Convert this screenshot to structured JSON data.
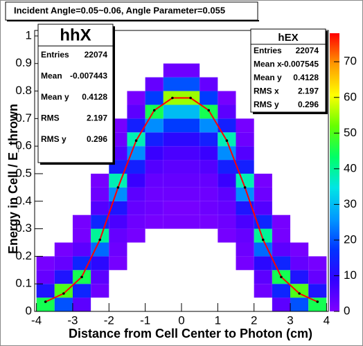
{
  "chart_data": {
    "type": "heatmap",
    "title": "Incident Angle=0.05~0.06, Angle Parameter=0.055",
    "x_label": "Distance from Cell Center to Photon (cm)",
    "y_label": "Energy in Cell / E_thrown",
    "xlim": [
      -4.05,
      4.05
    ],
    "ylim": [
      0,
      1.02
    ],
    "zlim": [
      0,
      78
    ],
    "xticks": [
      -4,
      -3,
      -2,
      -1,
      0,
      1,
      2,
      3,
      4
    ],
    "yticks": [
      0,
      0.1,
      0.2,
      0.3,
      0.4,
      0.5,
      0.6,
      0.7,
      0.8,
      0.9,
      1
    ],
    "zticks": [
      0,
      10,
      20,
      30,
      40,
      50,
      60,
      70
    ],
    "palette": [
      "#7f00ff",
      "#3300ff",
      "#0033ff",
      "#0099ff",
      "#00e5e5",
      "#00ff66",
      "#66ff00",
      "#ffff00",
      "#ff9900",
      "#ff0000"
    ],
    "x_bins": [
      -4,
      -3.5,
      -3,
      -2.5,
      -2,
      -1.5,
      -1,
      -0.5,
      0,
      0.5,
      1,
      1.5,
      2,
      2.5,
      3,
      3.5,
      4
    ],
    "y_bins": [
      0,
      0.05,
      0.1,
      0.15,
      0.2,
      0.25,
      0.3,
      0.35,
      0.4,
      0.45,
      0.5,
      0.55,
      0.6,
      0.65,
      0.7,
      0.75,
      0.8,
      0.85,
      0.9,
      0.95,
      1
    ],
    "counts": [
      [
        45,
        12,
        3,
        1,
        0,
        0,
        0,
        0,
        0,
        0,
        0,
        0,
        0,
        0,
        0,
        0,
        0,
        0,
        0,
        0
      ],
      [
        20,
        50,
        12,
        3,
        1,
        0,
        0,
        0,
        0,
        0,
        0,
        0,
        0,
        0,
        0,
        0,
        0,
        0,
        0,
        0
      ],
      [
        4,
        15,
        45,
        15,
        4,
        1,
        1,
        0,
        0,
        0,
        0,
        0,
        0,
        0,
        0,
        0,
        0,
        0,
        0,
        0
      ],
      [
        0,
        2,
        4,
        10,
        22,
        40,
        15,
        5,
        2,
        1,
        0,
        0,
        0,
        0,
        0,
        0,
        0,
        0,
        0,
        0
      ],
      [
        0,
        0,
        0,
        1,
        2,
        3,
        6,
        12,
        25,
        38,
        14,
        5,
        2,
        1,
        0,
        0,
        0,
        0,
        0,
        0
      ],
      [
        0,
        0,
        0,
        0,
        0,
        1,
        2,
        3,
        4,
        8,
        14,
        25,
        38,
        14,
        4,
        1,
        0,
        0,
        0,
        0
      ],
      [
        0,
        0,
        0,
        0,
        0,
        0,
        1,
        2,
        2,
        3,
        5,
        8,
        14,
        25,
        45,
        18,
        3,
        0,
        0,
        0
      ],
      [
        0,
        0,
        0,
        0,
        0,
        0,
        1,
        1,
        2,
        3,
        4,
        6,
        10,
        18,
        30,
        55,
        20,
        2,
        0,
        0
      ],
      [
        0,
        0,
        0,
        0,
        0,
        0,
        1,
        1,
        2,
        3,
        4,
        6,
        10,
        18,
        30,
        55,
        20,
        2,
        0,
        0
      ],
      [
        0,
        0,
        0,
        0,
        0,
        0,
        1,
        2,
        2,
        3,
        5,
        8,
        14,
        25,
        45,
        18,
        3,
        0,
        0,
        0
      ],
      [
        0,
        0,
        0,
        0,
        0,
        1,
        2,
        3,
        4,
        8,
        14,
        25,
        38,
        14,
        4,
        1,
        0,
        0,
        0,
        0
      ],
      [
        0,
        0,
        0,
        1,
        2,
        3,
        6,
        12,
        25,
        38,
        14,
        5,
        2,
        1,
        0,
        0,
        0,
        0,
        0,
        0
      ],
      [
        0,
        2,
        4,
        10,
        22,
        40,
        15,
        5,
        2,
        1,
        0,
        0,
        0,
        0,
        0,
        0,
        0,
        0,
        0,
        0
      ],
      [
        4,
        15,
        45,
        15,
        4,
        1,
        1,
        0,
        0,
        0,
        0,
        0,
        0,
        0,
        0,
        0,
        0,
        0,
        0,
        0
      ],
      [
        20,
        50,
        12,
        3,
        1,
        0,
        0,
        0,
        0,
        0,
        0,
        0,
        0,
        0,
        0,
        0,
        0,
        0,
        0,
        0
      ],
      [
        45,
        12,
        3,
        1,
        0,
        0,
        0,
        0,
        0,
        0,
        0,
        0,
        0,
        0,
        0,
        0,
        0,
        0,
        0,
        0
      ]
    ],
    "profile": {
      "color": "#ff0000",
      "x": [
        -3.75,
        -3.25,
        -2.75,
        -2.25,
        -1.75,
        -1.25,
        -0.75,
        -0.25,
        0.25,
        0.75,
        1.25,
        1.75,
        2.25,
        2.75,
        3.25,
        3.75
      ],
      "y": [
        0.035,
        0.065,
        0.125,
        0.26,
        0.45,
        0.62,
        0.73,
        0.775,
        0.775,
        0.73,
        0.62,
        0.45,
        0.26,
        0.125,
        0.065,
        0.035
      ]
    },
    "stats": [
      {
        "title": "hhX",
        "rows": [
          [
            "Entries",
            "22074"
          ],
          [
            "Mean",
            "-0.007443"
          ],
          [
            "Mean y",
            "0.4128"
          ],
          [
            "RMS",
            "2.197"
          ],
          [
            "RMS y",
            "0.296"
          ]
        ]
      },
      {
        "title": "hEX",
        "rows": [
          [
            "Entries",
            "22074"
          ],
          [
            "Mean x",
            "-0.007545"
          ],
          [
            "Mean y",
            "0.4128"
          ],
          [
            "RMS x",
            "2.197"
          ],
          [
            "RMS y",
            "0.296"
          ]
        ]
      }
    ]
  }
}
